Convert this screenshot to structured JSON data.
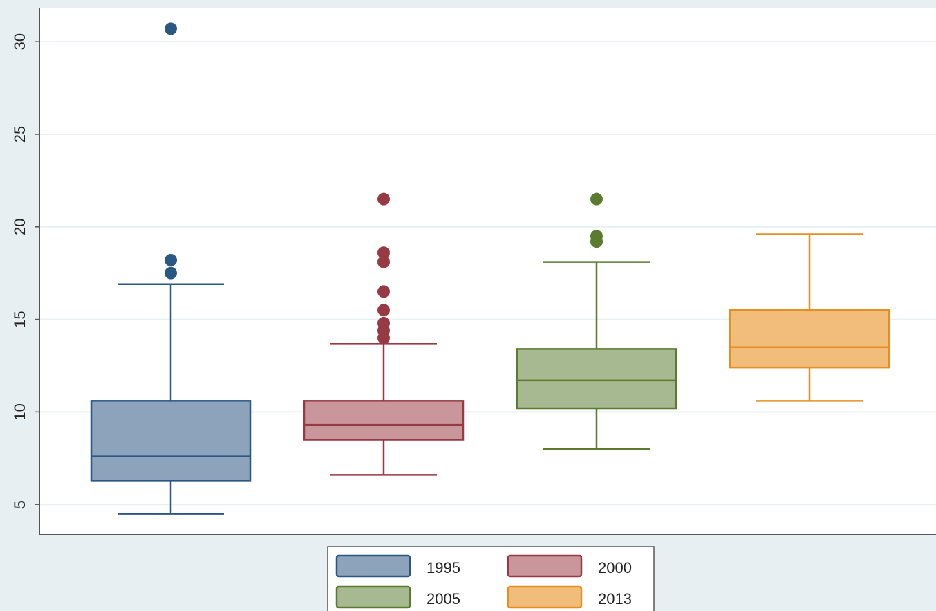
{
  "chart_data": {
    "type": "box",
    "series": [
      {
        "name": "1995",
        "color": "#8da3bb",
        "edge": "#2b5783",
        "whisker_low": 4.5,
        "q1": 6.3,
        "median": 7.6,
        "q3": 10.6,
        "whisker_high": 16.9,
        "outliers": [
          17.5,
          18.2,
          30.7
        ]
      },
      {
        "name": "2000",
        "color": "#c9979b",
        "edge": "#973a43",
        "whisker_low": 6.6,
        "q1": 8.5,
        "median": 9.3,
        "q3": 10.6,
        "whisker_high": 13.7,
        "outliers": [
          14.0,
          14.4,
          14.8,
          15.5,
          16.5,
          18.1,
          18.6,
          21.5
        ]
      },
      {
        "name": "2005",
        "color": "#a7b991",
        "edge": "#5a7b30",
        "whisker_low": 8.0,
        "q1": 10.2,
        "median": 11.7,
        "q3": 13.4,
        "whisker_high": 18.1,
        "outliers": [
          19.2,
          19.5,
          21.5
        ]
      },
      {
        "name": "2013",
        "color": "#f2bd7a",
        "edge": "#e58f22",
        "whisker_low": 10.6,
        "q1": 12.4,
        "median": 13.5,
        "q3": 15.5,
        "whisker_high": 19.6,
        "outliers": []
      }
    ],
    "ylim": [
      3.4,
      31.8
    ],
    "yticks": [
      5,
      10,
      15,
      20,
      25,
      30
    ],
    "grid": true
  }
}
